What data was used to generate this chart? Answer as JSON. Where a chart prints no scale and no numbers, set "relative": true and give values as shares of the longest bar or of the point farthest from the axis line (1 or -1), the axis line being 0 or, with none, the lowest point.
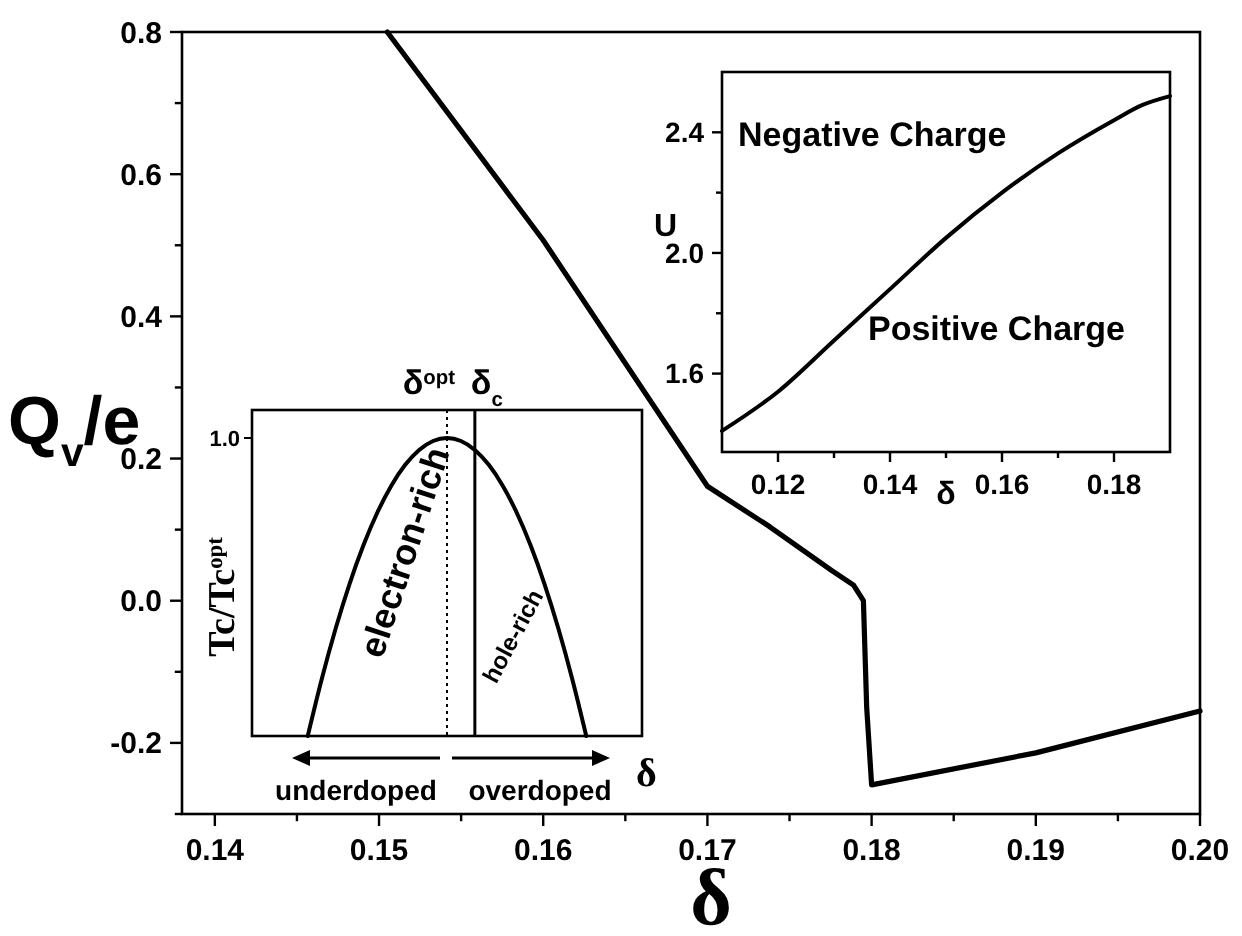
{
  "chart_data": [
    {
      "type": "line",
      "xlabel": "δ",
      "ylabel": "Q$_{v}$/e",
      "x": [
        0.1505,
        0.16,
        0.17,
        0.1738,
        0.1776,
        0.1789,
        0.1795,
        0.1797,
        0.18,
        0.19,
        0.2
      ],
      "series": [
        {
          "color": "#000000",
          "values": [
            0.8,
            0.507,
            0.161,
            0.104,
            0.042,
            0.022,
            0.0,
            -0.15,
            -0.259,
            -0.214,
            -0.155
          ]
        }
      ],
      "xlim": [
        0.138,
        0.2
      ],
      "xticks": [
        0.14,
        {
          "value": 0.145,
          "label": null
        },
        0.15,
        {
          "value": 0.155,
          "label": null
        },
        0.16,
        {
          "value": 0.165,
          "label": null
        },
        0.17,
        {
          "value": 0.175,
          "label": null
        },
        0.18,
        {
          "value": 0.185,
          "label": null
        },
        0.19,
        {
          "value": 0.195,
          "label": null
        },
        "0.20"
      ],
      "ylim": [
        -0.3,
        0.8
      ],
      "yticks": [
        {
          "value": -0.3,
          "label": null
        },
        -0.2,
        {
          "value": -0.1,
          "label": null
        },
        {
          "value": 0,
          "label": "0.0"
        },
        {
          "value": 0.1,
          "label": null
        },
        0.2,
        {
          "value": 0.3,
          "label": null
        },
        0.4,
        {
          "value": 0.5,
          "label": null
        },
        0.6,
        {
          "value": 0.7,
          "label": null
        },
        0.8
      ],
      "grid": false,
      "marker": "none",
      "line_style": "solid"
    },
    {
      "type": "line",
      "xlabel": "δ",
      "ylabel": "U",
      "x": [
        0.11,
        0.12,
        0.13,
        0.14,
        0.15,
        0.16,
        0.17,
        0.18,
        0.185,
        0.19
      ],
      "series": [
        {
          "color": "#000000",
          "values": [
            1.41,
            1.54,
            1.71,
            1.88,
            2.05,
            2.2,
            2.33,
            2.44,
            2.49,
            2.52
          ]
        }
      ],
      "xlim": [
        0.11,
        0.19
      ],
      "xticks": [
        0.12,
        {
          "value": 0.13,
          "label": null
        },
        0.14,
        {
          "value": 0.15,
          "label": null
        },
        0.16,
        {
          "value": 0.17,
          "label": null
        },
        0.18
      ],
      "ylim": [
        1.34,
        2.6
      ],
      "yticks": [
        1.6,
        {
          "value": 1.8,
          "label": null
        },
        "2.0",
        {
          "value": 2.2,
          "label": null
        },
        2.4
      ],
      "annotations": [
        "Negative Charge",
        "Positive Charge"
      ],
      "grid": false,
      "marker": "none",
      "line_style": "solid"
    },
    {
      "type": "line",
      "relative": true,
      "xlabel": "δ",
      "ylabel": "Tc/Tc$^{opt}$",
      "categories": [
        null,
        null,
        null,
        null,
        null,
        null,
        null,
        null,
        null,
        null,
        null,
        null,
        null,
        null,
        null,
        null,
        null,
        null,
        null,
        null,
        null,
        null,
        null,
        null,
        null,
        null,
        null,
        null,
        null
      ],
      "series": [
        {
          "color": "#000000",
          "values": [
            null,
            null,
            null,
            null,
            0,
            0.19,
            0.36,
            0.51,
            0.64,
            0.75,
            0.84,
            0.91,
            0.96,
            0.99,
            1,
            0.99,
            0.96,
            0.91,
            0.84,
            0.75,
            0.64,
            0.51,
            0.36,
            0.19,
            0,
            null,
            null,
            null,
            null
          ]
        }
      ],
      "annotations": [
        "1.0",
        "electron-rich",
        "hole-rich",
        "underdoped",
        "overdoped",
        "δ$^{opt}$",
        "δ$_{c}$"
      ],
      "grid": false,
      "marker": "none",
      "line_style": "solid"
    }
  ]
}
